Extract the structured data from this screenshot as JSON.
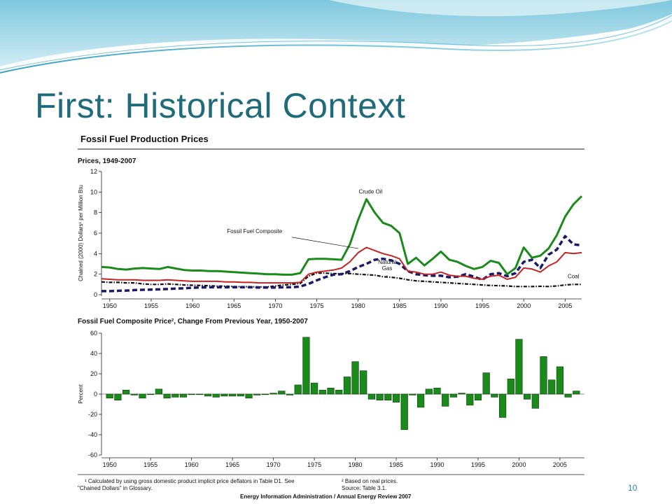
{
  "slide": {
    "title": "First: Historical Context",
    "page_number": "10"
  },
  "figure": {
    "title": "Fossil Fuel Production Prices",
    "footnote_left_1": "¹ Calculated by using gross domestic product implicit price deflators in Table D1.  See",
    "footnote_left_2": "\"Chained Dollars\" in Glossary.",
    "footnote_right_1": "² Based on real prices.",
    "footnote_right_2": "Source: Table 3.1.",
    "credit": "Energy Information Administration / Annual Energy Review 2007"
  },
  "colors": {
    "crude_oil": "#1a8a1a",
    "composite": "#c42424",
    "natural_gas": "#1a1a66",
    "coal": "#111111",
    "bars": "#1a8a1a",
    "title": "#1f6b7a"
  },
  "chart_data": [
    {
      "type": "line",
      "title": "Prices, 1949-2007",
      "ylabel": "Chained (2000) Dollars¹ per Million Btu",
      "xlim": [
        1949,
        2007
      ],
      "ylim": [
        0,
        12
      ],
      "x_ticks": [
        1950,
        1955,
        1960,
        1965,
        1970,
        1975,
        1980,
        1985,
        1990,
        1995,
        2000,
        2005
      ],
      "y_ticks": [
        0,
        2,
        4,
        6,
        8,
        10,
        12
      ],
      "grid": false,
      "annotations": [
        "Crude Oil",
        "Fossil Fuel Composite",
        "Natural Gas",
        "Coal"
      ],
      "series": [
        {
          "name": "Crude Oil",
          "x": [
            1949,
            1950,
            1951,
            1952,
            1953,
            1954,
            1955,
            1956,
            1957,
            1958,
            1959,
            1960,
            1961,
            1962,
            1963,
            1964,
            1965,
            1966,
            1967,
            1968,
            1969,
            1970,
            1971,
            1972,
            1973,
            1974,
            1975,
            1976,
            1977,
            1978,
            1979,
            1980,
            1981,
            1982,
            1983,
            1984,
            1985,
            1986,
            1987,
            1988,
            1989,
            1990,
            1991,
            1992,
            1993,
            1994,
            1995,
            1996,
            1997,
            1998,
            1999,
            2000,
            2001,
            2002,
            2003,
            2004,
            2005,
            2006,
            2007
          ],
          "values": [
            2.7,
            2.65,
            2.5,
            2.45,
            2.55,
            2.6,
            2.55,
            2.5,
            2.7,
            2.55,
            2.4,
            2.35,
            2.35,
            2.3,
            2.3,
            2.25,
            2.2,
            2.15,
            2.1,
            2.05,
            2.0,
            2.0,
            1.95,
            1.95,
            2.1,
            3.45,
            3.5,
            3.5,
            3.45,
            3.4,
            4.9,
            7.3,
            9.3,
            8.0,
            7.0,
            6.7,
            6.0,
            3.0,
            3.6,
            2.85,
            3.5,
            4.2,
            3.4,
            3.2,
            2.8,
            2.5,
            2.7,
            3.3,
            3.1,
            2.0,
            2.6,
            4.6,
            3.6,
            3.8,
            4.5,
            5.8,
            7.6,
            8.8,
            9.6
          ]
        },
        {
          "name": "Fossil Fuel Composite",
          "x": [
            1949,
            1950,
            1951,
            1952,
            1953,
            1954,
            1955,
            1956,
            1957,
            1958,
            1959,
            1960,
            1961,
            1962,
            1963,
            1964,
            1965,
            1966,
            1967,
            1968,
            1969,
            1970,
            1971,
            1972,
            1973,
            1974,
            1975,
            1976,
            1977,
            1978,
            1979,
            1980,
            1981,
            1982,
            1983,
            1984,
            1985,
            1986,
            1987,
            1988,
            1989,
            1990,
            1991,
            1992,
            1993,
            1994,
            1995,
            1996,
            1997,
            1998,
            1999,
            2000,
            2001,
            2002,
            2003,
            2004,
            2005,
            2006,
            2007
          ],
          "values": [
            1.55,
            1.5,
            1.45,
            1.45,
            1.45,
            1.4,
            1.4,
            1.4,
            1.45,
            1.4,
            1.35,
            1.3,
            1.3,
            1.3,
            1.3,
            1.25,
            1.25,
            1.2,
            1.2,
            1.15,
            1.15,
            1.15,
            1.15,
            1.15,
            1.2,
            2.0,
            2.2,
            2.3,
            2.4,
            2.6,
            3.2,
            4.1,
            4.6,
            4.3,
            4.0,
            3.8,
            3.5,
            2.3,
            2.2,
            2.0,
            2.0,
            2.2,
            1.9,
            1.8,
            1.8,
            1.6,
            1.5,
            1.8,
            1.9,
            1.5,
            1.7,
            2.6,
            2.5,
            2.2,
            2.8,
            3.2,
            4.1,
            4.0,
            4.1
          ]
        },
        {
          "name": "Natural Gas",
          "x": [
            1949,
            1950,
            1951,
            1952,
            1953,
            1954,
            1955,
            1956,
            1957,
            1958,
            1959,
            1960,
            1961,
            1962,
            1963,
            1964,
            1965,
            1966,
            1967,
            1968,
            1969,
            1970,
            1971,
            1972,
            1973,
            1974,
            1975,
            1976,
            1977,
            1978,
            1979,
            1980,
            1981,
            1982,
            1983,
            1984,
            1985,
            1986,
            1987,
            1988,
            1989,
            1990,
            1991,
            1992,
            1993,
            1994,
            1995,
            1996,
            1997,
            1998,
            1999,
            2000,
            2001,
            2002,
            2003,
            2004,
            2005,
            2006,
            2007
          ],
          "values": [
            0.35,
            0.35,
            0.38,
            0.4,
            0.45,
            0.48,
            0.5,
            0.52,
            0.55,
            0.6,
            0.62,
            0.68,
            0.7,
            0.72,
            0.72,
            0.72,
            0.72,
            0.72,
            0.72,
            0.7,
            0.7,
            0.7,
            0.72,
            0.72,
            0.8,
            1.05,
            1.4,
            1.7,
            1.95,
            2.0,
            2.3,
            2.7,
            3.0,
            3.4,
            3.5,
            3.35,
            3.0,
            2.3,
            2.0,
            1.9,
            1.85,
            1.85,
            1.7,
            1.75,
            2.0,
            1.75,
            1.45,
            2.0,
            2.1,
            1.8,
            2.1,
            3.2,
            3.4,
            2.6,
            3.9,
            4.4,
            5.7,
            4.9,
            4.8
          ]
        },
        {
          "name": "Coal",
          "x": [
            1949,
            1950,
            1951,
            1952,
            1953,
            1954,
            1955,
            1956,
            1957,
            1958,
            1959,
            1960,
            1961,
            1962,
            1963,
            1964,
            1965,
            1966,
            1967,
            1968,
            1969,
            1970,
            1971,
            1972,
            1973,
            1974,
            1975,
            1976,
            1977,
            1978,
            1979,
            1980,
            1981,
            1982,
            1983,
            1984,
            1985,
            1986,
            1987,
            1988,
            1989,
            1990,
            1991,
            1992,
            1993,
            1994,
            1995,
            1996,
            1997,
            1998,
            1999,
            2000,
            2001,
            2002,
            2003,
            2004,
            2005,
            2006,
            2007
          ],
          "values": [
            1.25,
            1.2,
            1.2,
            1.15,
            1.15,
            1.05,
            1.0,
            1.0,
            1.05,
            1.0,
            0.95,
            0.92,
            0.9,
            0.87,
            0.84,
            0.83,
            0.8,
            0.78,
            0.78,
            0.76,
            0.76,
            0.85,
            0.95,
            1.0,
            1.1,
            1.8,
            2.1,
            2.1,
            2.05,
            2.05,
            2.05,
            2.0,
            1.95,
            1.9,
            1.75,
            1.7,
            1.6,
            1.45,
            1.35,
            1.3,
            1.25,
            1.2,
            1.15,
            1.1,
            1.05,
            1.0,
            0.95,
            0.9,
            0.88,
            0.85,
            0.8,
            0.8,
            0.8,
            0.82,
            0.8,
            0.85,
            0.95,
            1.0,
            1.0
          ]
        }
      ]
    },
    {
      "type": "bar",
      "title": "Fossil Fuel Composite Price², Change From Previous Year, 1950-2007",
      "ylabel": "Percent",
      "xlim": [
        1949,
        2008
      ],
      "ylim": [
        -60,
        60
      ],
      "x_ticks": [
        1950,
        1955,
        1960,
        1965,
        1970,
        1975,
        1980,
        1985,
        1990,
        1995,
        2000,
        2005
      ],
      "y_ticks": [
        -60,
        -40,
        -20,
        0,
        20,
        40,
        60
      ],
      "grid": false,
      "x": [
        1950,
        1951,
        1952,
        1953,
        1954,
        1955,
        1956,
        1957,
        1958,
        1959,
        1960,
        1961,
        1962,
        1963,
        1964,
        1965,
        1966,
        1967,
        1968,
        1969,
        1970,
        1971,
        1972,
        1973,
        1974,
        1975,
        1976,
        1977,
        1978,
        1979,
        1980,
        1981,
        1982,
        1983,
        1984,
        1985,
        1986,
        1987,
        1988,
        1989,
        1990,
        1991,
        1992,
        1993,
        1994,
        1995,
        1996,
        1997,
        1998,
        1999,
        2000,
        2001,
        2002,
        2003,
        2004,
        2005,
        2006,
        2007
      ],
      "values": [
        -4,
        -6,
        4,
        -1,
        -4,
        0,
        5,
        -4,
        -3,
        -3,
        0,
        0,
        -2,
        -3,
        -2,
        -2,
        -2,
        -4,
        -1,
        0,
        1,
        3,
        -1,
        9,
        56,
        11,
        4,
        6,
        4,
        17,
        32,
        23,
        -5,
        -6,
        -6,
        -8,
        -35,
        -1,
        -13,
        5,
        6,
        -12,
        -3,
        1,
        -11,
        -6,
        21,
        -3,
        -23,
        15,
        54,
        -5,
        -14,
        37,
        14,
        27,
        -3,
        3
      ]
    }
  ]
}
